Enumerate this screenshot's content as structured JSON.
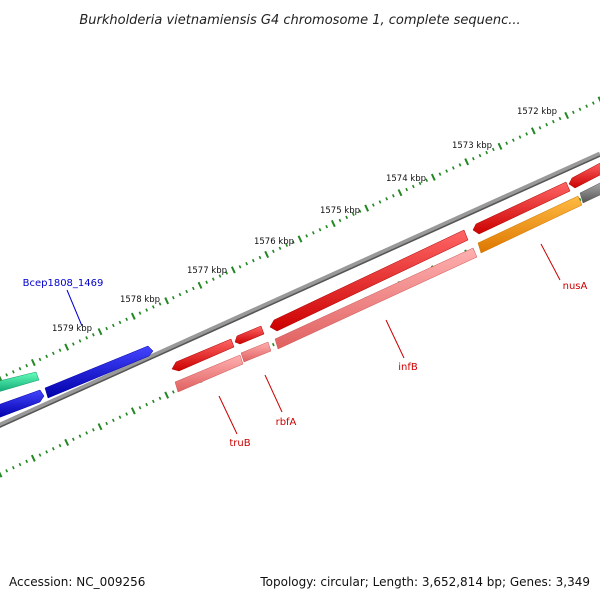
{
  "header": {
    "title": "Burkholderia vietnamiensis G4 chromosome 1, complete sequenc..."
  },
  "footer": {
    "accession": "Accession: NC_009256",
    "summary": "Topology: circular; Length: 3,652,814 bp; Genes: 3,349"
  },
  "tick_labels": [
    "1572 kbp",
    "1573 kbp",
    "1574 kbp",
    "1575 kbp",
    "1576 kbp",
    "1577 kbp",
    "1578 kbp",
    "1579 kbp"
  ],
  "gene_labels": {
    "bcep": "Bcep1808_1469",
    "nusA": "nusA",
    "infB": "infB",
    "rbfA": "rbfA",
    "truB": "truB"
  },
  "colors": {
    "cds": "#ff0000",
    "gene": "#f08080",
    "highlight": "#0000ff",
    "teal": "#22dd99",
    "orange": "#ff9900",
    "backbone": "#808080",
    "tick": "#228822",
    "label_blue": "#0000cc",
    "label_red": "#cc0000"
  }
}
